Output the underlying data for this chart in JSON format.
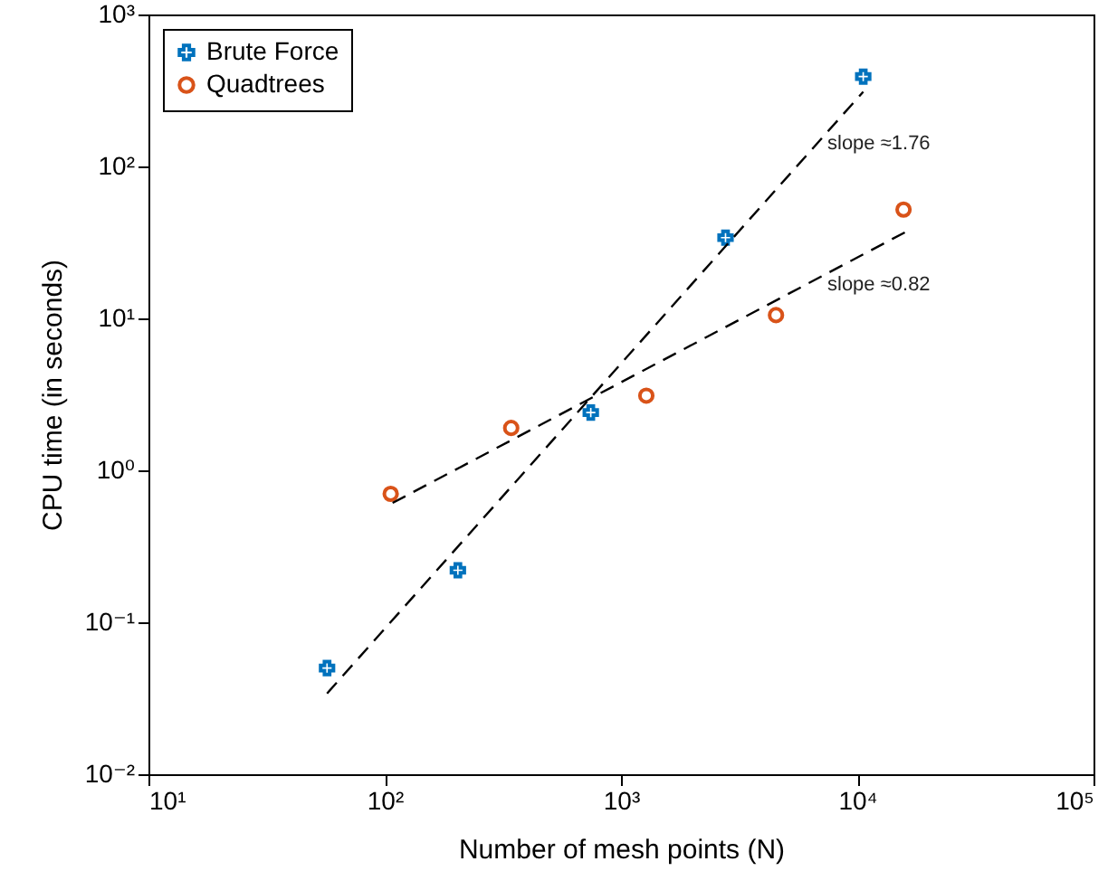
{
  "chart_data": {
    "type": "scatter",
    "xlabel": "Number of mesh points (N)",
    "ylabel": "CPU time (in seconds)",
    "log": "xy",
    "grid": false,
    "legend": "top left",
    "xlim": [
      10,
      100000
    ],
    "ylim": [
      0.01,
      1000
    ],
    "xticks": [
      {
        "value": 10,
        "label": "10¹"
      },
      {
        "value": 100,
        "label": "10²"
      },
      {
        "value": 1000,
        "label": "10³"
      },
      {
        "value": 10000,
        "label": "10⁴"
      },
      {
        "value": 100000,
        "label": "10⁵"
      }
    ],
    "yticks": [
      {
        "value": 0.01,
        "label": "10⁻²"
      },
      {
        "value": 0.1,
        "label": "10⁻¹"
      },
      {
        "value": 1,
        "label": "10⁰"
      },
      {
        "value": 10,
        "label": "10¹"
      },
      {
        "value": 100,
        "label": "10²"
      },
      {
        "value": 1000,
        "label": "10³"
      }
    ],
    "series": [
      {
        "name": "Brute Force",
        "marker": "cross",
        "color": "#0072bd",
        "x": [
          57,
          204,
          745,
          2770,
          10600
        ],
        "values": [
          0.05,
          0.22,
          2.4,
          34,
          390
        ]
      },
      {
        "name": "Quadtrees",
        "marker": "circle",
        "color": "#d95319",
        "x": [
          106,
          343,
          1280,
          4530,
          15700
        ],
        "values": [
          0.7,
          1.9,
          3.1,
          10.5,
          52
        ]
      },
      {
        "type": "line",
        "line_style": "dashed",
        "color": "#000000",
        "x": [
          57,
          10600
        ],
        "values": [
          0.034,
          310
        ]
      },
      {
        "type": "line",
        "line_style": "dashed",
        "color": "#000000",
        "x": [
          108,
          16000
        ],
        "values": [
          0.61,
          37
        ]
      }
    ],
    "annotations": [
      "slope ≈1.76",
      "slope ≈0.82"
    ]
  }
}
